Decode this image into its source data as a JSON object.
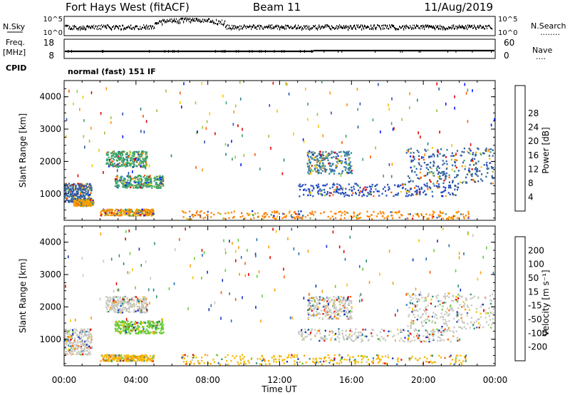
{
  "header": {
    "station": "Fort Hays West (fitACF)",
    "beam": "Beam 11",
    "date": "11/Aug/2019"
  },
  "strip": {
    "nsky_label": "N.Sky",
    "nsearch_label": "N.Search",
    "nsearch_dots": "........",
    "nsky_ticks": [
      "10^5",
      "10^0"
    ],
    "freq_label": "Freq.",
    "freq_unit": "[MHz]",
    "freq_ticks": [
      "18",
      "8"
    ],
    "nave_label": "Nave",
    "nave_dots": "....",
    "nave_ticks": [
      "60",
      "0"
    ],
    "cpid_label": "CPID",
    "cpid_text": "normal (fast) 151 IF"
  },
  "chart_data": [
    {
      "type": "heatmap",
      "name": "power-panel",
      "ylabel": "Slant Range [km]",
      "xlabel": "",
      "x_ticks": [
        "00:00",
        "04:00",
        "08:00",
        "12:00",
        "16:00",
        "20:00",
        "00:00"
      ],
      "y_ticks": [
        "1000",
        "2000",
        "3000",
        "4000"
      ],
      "xlim_hours": [
        0,
        24
      ],
      "ylim_km": [
        180,
        4500
      ],
      "colorbar": {
        "label": "Power [dB]",
        "tick_labels": [
          "4",
          "8",
          "12",
          "16",
          "20",
          "24",
          "28"
        ],
        "colors": [
          "#0018ff",
          "#2a4fb8",
          "#2f7e8f",
          "#3aa36b",
          "#9bc33d",
          "#f5c400",
          "#ff9000",
          "#ff5a00",
          "#e00000"
        ]
      },
      "echo_regions": [
        {
          "t": [
            0.0,
            1.5
          ],
          "r": [
            700,
            1300
          ],
          "dominant": "#3060a0"
        },
        {
          "t": [
            0.5,
            1.6
          ],
          "r": [
            600,
            800
          ],
          "dominant": "#f5a000"
        },
        {
          "t": [
            2.0,
            5.0
          ],
          "r": [
            300,
            500
          ],
          "dominant": "#f09000"
        },
        {
          "t": [
            2.3,
            4.6
          ],
          "r": [
            1800,
            2300
          ],
          "dominant": "#3aa36b"
        },
        {
          "t": [
            2.8,
            5.5
          ],
          "r": [
            1150,
            1550
          ],
          "dominant": "#3aa36b"
        },
        {
          "t": [
            6.5,
            22.5
          ],
          "r": [
            200,
            450
          ],
          "dominant": "#ff8000"
        },
        {
          "t": [
            13.5,
            16.0
          ],
          "r": [
            1600,
            2300
          ],
          "dominant": "#3a80a0"
        },
        {
          "t": [
            13.0,
            22.0
          ],
          "r": [
            900,
            1300
          ],
          "dominant": "#2a4fb8"
        },
        {
          "t": [
            19.0,
            23.9
          ],
          "r": [
            1300,
            2400
          ],
          "dominant": "#3060a0"
        }
      ]
    },
    {
      "type": "heatmap",
      "name": "velocity-panel",
      "ylabel": "Slant Range [km]",
      "xlabel": "Time UT",
      "x_ticks": [
        "00:00",
        "04:00",
        "08:00",
        "12:00",
        "16:00",
        "20:00",
        "00:00"
      ],
      "y_ticks": [
        "1000",
        "2000",
        "3000",
        "4000"
      ],
      "xlim_hours": [
        0,
        24
      ],
      "ylim_km": [
        180,
        4500
      ],
      "colorbar": {
        "label": "Velocity [m s⁻¹]",
        "tick_labels": [
          "200",
          "100",
          "50",
          "15",
          "-15",
          "-50",
          "-100",
          "-200"
        ],
        "colors": [
          "#1030c0",
          "#2a6fb0",
          "#2f8f6a",
          "#66cc33",
          "#c8c8c0",
          "#f5c400",
          "#ff9a00",
          "#ff5a00",
          "#e00000"
        ]
      },
      "echo_regions": [
        {
          "t": [
            0.0,
            1.5
          ],
          "r": [
            500,
            1300
          ],
          "dominant": "#c8c8c0"
        },
        {
          "t": [
            2.0,
            5.0
          ],
          "r": [
            300,
            500
          ],
          "dominant": "#f5b800"
        },
        {
          "t": [
            2.3,
            4.6
          ],
          "r": [
            1800,
            2300
          ],
          "dominant": "#c8c8c0"
        },
        {
          "t": [
            2.8,
            5.5
          ],
          "r": [
            1150,
            1550
          ],
          "dominant": "#66cc33"
        },
        {
          "t": [
            6.5,
            22.5
          ],
          "r": [
            200,
            500
          ],
          "dominant": "#f5b800"
        },
        {
          "t": [
            13.5,
            16.0
          ],
          "r": [
            1600,
            2300
          ],
          "dominant": "#c8c8c0"
        },
        {
          "t": [
            13.0,
            22.0
          ],
          "r": [
            900,
            1300
          ],
          "dominant": "#c8c8c0"
        },
        {
          "t": [
            19.0,
            23.9
          ],
          "r": [
            1300,
            2400
          ],
          "dominant": "#c8c8c0"
        }
      ]
    }
  ]
}
